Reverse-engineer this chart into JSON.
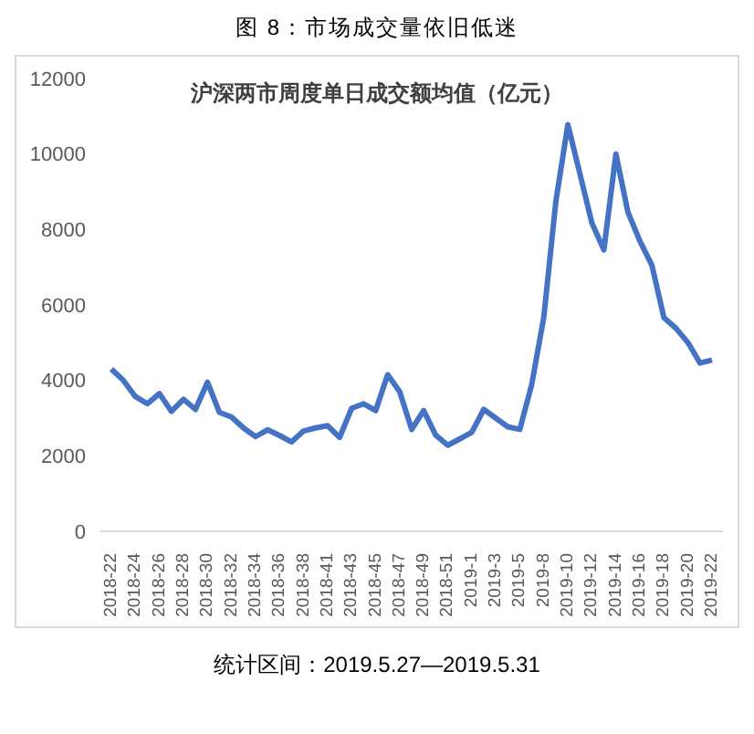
{
  "chart_data": {
    "type": "line",
    "title": "图 8：市场成交量依旧低迷",
    "subtitle": "沪深两市周度单日成交额均值（亿元）",
    "categories": [
      "2018-22",
      null,
      "2018-24",
      null,
      "2018-26",
      null,
      "2018-28",
      null,
      "2018-30",
      null,
      "2018-32",
      null,
      "2018-34",
      null,
      "2018-36",
      null,
      "2018-38",
      null,
      "2018-41",
      null,
      "2018-43",
      null,
      "2018-45",
      null,
      "2018-47",
      null,
      "2018-49",
      null,
      "2018-51",
      null,
      "2019-1",
      null,
      "2019-3",
      null,
      "2019-5",
      null,
      "2019-8",
      null,
      "2019-10",
      null,
      "2019-12",
      null,
      "2019-14",
      null,
      "2019-16",
      null,
      "2019-18",
      null,
      "2019-20",
      null,
      "2019-22"
    ],
    "series": [
      {
        "color": "#4472c4",
        "values": [
          4300,
          4000,
          3570,
          3380,
          3650,
          3180,
          3500,
          3230,
          3950,
          3150,
          3030,
          2740,
          2510,
          2690,
          2540,
          2370,
          2660,
          2740,
          2800,
          2490,
          3260,
          3380,
          3200,
          4150,
          3700,
          2700,
          3200,
          2550,
          2280,
          2450,
          2620,
          3230,
          3000,
          2770,
          2700,
          3900,
          5680,
          8740,
          10780,
          9480,
          8170,
          7460,
          10000,
          8460,
          7690,
          7050,
          5660,
          5380,
          5000,
          4460,
          4540
        ]
      }
    ],
    "ylim": [
      0,
      12000
    ],
    "yticks": [
      0,
      2000,
      4000,
      6000,
      8000,
      10000,
      12000
    ],
    "grid": false,
    "legend": false,
    "marker": "none",
    "line_style": "solid",
    "annotations": [
      "统计区间：2019.5.27—2019.5.31"
    ]
  }
}
